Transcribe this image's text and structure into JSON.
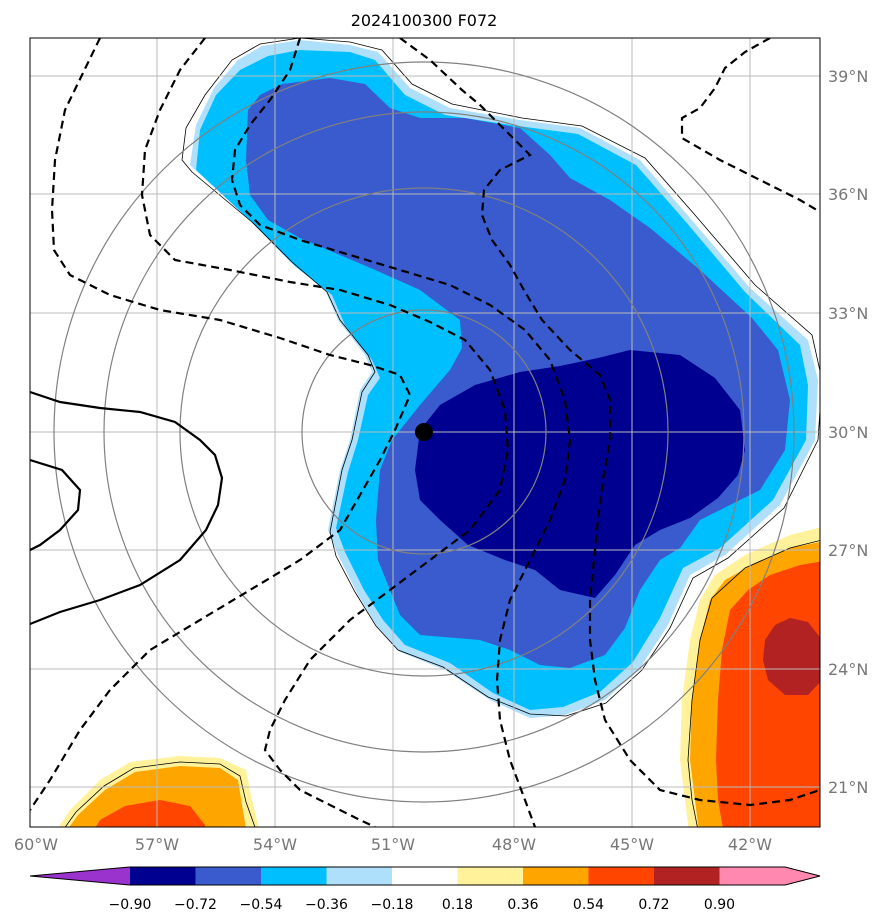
{
  "title": "2024100300 F072",
  "colors": {
    "c_n090": "#000090",
    "c_n072": "#3a5bcd",
    "c_n054": "#00bfff",
    "c_n036": "#aee0fb",
    "c_p036": "#fff29a",
    "c_p054": "#ffa500",
    "c_p072": "#ff4500",
    "c_p090": "#b22222",
    "grid": "#bbbbbb",
    "range_rings": "#808080",
    "center_marker": "#000000"
  },
  "map": {
    "lon_labels": [
      "60°W",
      "57°W",
      "54°W",
      "51°W",
      "48°W",
      "45°W",
      "42°W"
    ],
    "lat_labels": [
      "39°N",
      "36°N",
      "33°N",
      "30°N",
      "27°N",
      "24°N",
      "21°N"
    ],
    "storm_center": {
      "lon": -49.7,
      "lat": 30.0
    }
  },
  "colorbar": {
    "ticks": [
      "−0.90",
      "−0.72",
      "−0.54",
      "−0.36",
      "−0.18",
      "0.18",
      "0.36",
      "0.54",
      "0.72",
      "0.90"
    ],
    "colors": [
      "#9a32cd",
      "#000090",
      "#3a5bcd",
      "#00bfff",
      "#aee0fb",
      "#ffffff",
      "#fff29a",
      "#ffa500",
      "#ff4500",
      "#b22222",
      "#ff88b0"
    ]
  }
}
